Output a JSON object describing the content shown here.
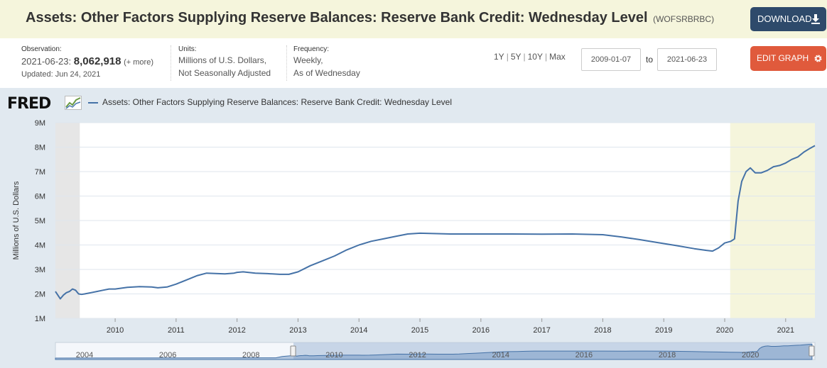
{
  "header": {
    "title": "Assets: Other Factors Supplying Reserve Balances: Reserve Bank Credit: Wednesday Level",
    "series_id": "(WOFSRBRBC)",
    "download_label": "DOWNLOAD"
  },
  "info": {
    "observation_label": "Observation:",
    "observation_date": "2021-06-23:",
    "observation_value": "8,062,918",
    "observation_more": "(+ more)",
    "updated": "Updated: Jun 24, 2021",
    "units_label": "Units:",
    "units_line1": "Millions of U.S. Dollars,",
    "units_line2": "Not Seasonally Adjusted",
    "frequency_label": "Frequency:",
    "frequency_line1": "Weekly,",
    "frequency_line2": "As of Wednesday"
  },
  "controls": {
    "ranges": [
      "1Y",
      "5Y",
      "10Y",
      "Max"
    ],
    "start_date": "2009-01-07",
    "to_label": "to",
    "end_date": "2021-06-23",
    "edit_label": "EDIT GRAPH"
  },
  "colors": {
    "series": "#4572a7",
    "recession": "#f5f5dc",
    "download": "#2e4a6b",
    "edit": "#e05a3c",
    "panel": "#e1e9f0"
  },
  "chart_data": {
    "type": "line",
    "legend_text": "Assets: Other Factors Supplying Reserve Balances: Reserve Bank Credit: Wednesday Level",
    "logo_text": "FRED",
    "ylabel": "Millions of U.S. Dollars",
    "ylim": [
      1,
      9
    ],
    "xlim": [
      2009.02,
      2021.48
    ],
    "y_ticks": [
      "1M",
      "2M",
      "3M",
      "4M",
      "5M",
      "6M",
      "7M",
      "8M",
      "9M"
    ],
    "x_ticks": [
      "2010",
      "2011",
      "2012",
      "2013",
      "2014",
      "2015",
      "2016",
      "2017",
      "2018",
      "2019",
      "2020",
      "2021"
    ],
    "recessions": [
      [
        2009.02,
        2009.42
      ],
      [
        2020.09,
        2021.48
      ]
    ],
    "unit": "millions of U.S. dollars, in millions (M = million)",
    "series": [
      {
        "name": "Assets: Other Factors Supplying Reserve Balances: Reserve Bank Credit: Wednesday Level",
        "x": [
          2009.02,
          2009.06,
          2009.1,
          2009.15,
          2009.2,
          2009.25,
          2009.3,
          2009.35,
          2009.4,
          2009.45,
          2009.5,
          2009.6,
          2009.7,
          2009.8,
          2009.9,
          2010.0,
          2010.2,
          2010.4,
          2010.6,
          2010.7,
          2010.85,
          2011.0,
          2011.2,
          2011.35,
          2011.5,
          2011.8,
          2011.95,
          2012.0,
          2012.1,
          2012.3,
          2012.5,
          2012.7,
          2012.85,
          2013.0,
          2013.2,
          2013.4,
          2013.6,
          2013.8,
          2014.0,
          2014.2,
          2014.4,
          2014.6,
          2014.8,
          2015.0,
          2015.5,
          2016.0,
          2016.5,
          2017.0,
          2017.5,
          2018.0,
          2018.3,
          2018.6,
          2018.9,
          2019.2,
          2019.5,
          2019.7,
          2019.8,
          2019.9,
          2020.0,
          2020.1,
          2020.16,
          2020.22,
          2020.28,
          2020.35,
          2020.42,
          2020.5,
          2020.6,
          2020.7,
          2020.8,
          2020.9,
          2021.0,
          2021.1,
          2021.2,
          2021.3,
          2021.4,
          2021.48
        ],
        "values": [
          2.1,
          1.95,
          1.8,
          1.95,
          2.05,
          2.1,
          2.2,
          2.15,
          2.0,
          1.98,
          2.0,
          2.05,
          2.1,
          2.15,
          2.2,
          2.2,
          2.27,
          2.3,
          2.28,
          2.25,
          2.28,
          2.4,
          2.6,
          2.75,
          2.85,
          2.82,
          2.85,
          2.88,
          2.9,
          2.85,
          2.83,
          2.8,
          2.8,
          2.9,
          3.15,
          3.35,
          3.55,
          3.8,
          4.0,
          4.15,
          4.25,
          4.35,
          4.45,
          4.48,
          4.45,
          4.45,
          4.45,
          4.44,
          4.45,
          4.42,
          4.33,
          4.22,
          4.1,
          3.98,
          3.85,
          3.78,
          3.75,
          3.88,
          4.08,
          4.15,
          4.25,
          5.8,
          6.6,
          7.0,
          7.15,
          6.95,
          6.95,
          7.05,
          7.2,
          7.25,
          7.35,
          7.5,
          7.6,
          7.8,
          7.95,
          8.06
        ]
      }
    ]
  }
}
